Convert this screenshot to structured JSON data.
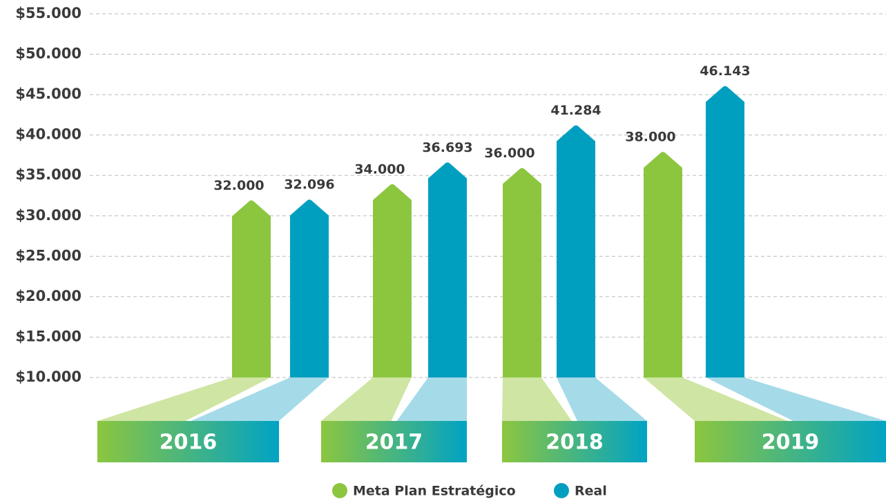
{
  "chart_data": {
    "type": "bar",
    "categories": [
      "2016",
      "2017",
      "2018",
      "2019"
    ],
    "series": [
      {
        "name": "Meta Plan Estratégico",
        "color": "#8cc63f",
        "light_color": "#cfe5a3",
        "values": [
          32000,
          34000,
          36000,
          38000
        ],
        "value_labels": [
          "32.000",
          "34.000",
          "36.000",
          "38.000"
        ]
      },
      {
        "name": "Real",
        "color": "#009fc0",
        "light_color": "#a5dbe8",
        "values": [
          32096,
          36693,
          41284,
          46143
        ],
        "value_labels": [
          "32.096",
          "36.693",
          "41.284",
          "46.143"
        ]
      }
    ],
    "ylim": [
      10000,
      55000
    ],
    "yticks": [
      {
        "value": 10000,
        "label": "$10.000"
      },
      {
        "value": 15000,
        "label": "$15.000"
      },
      {
        "value": 20000,
        "label": "$20.000"
      },
      {
        "value": 25000,
        "label": "$25.000"
      },
      {
        "value": 30000,
        "label": "$30.000"
      },
      {
        "value": 35000,
        "label": "$35.000"
      },
      {
        "value": 40000,
        "label": "$40.000"
      },
      {
        "value": 45000,
        "label": "$45.000"
      },
      {
        "value": 50000,
        "label": "$50.000"
      },
      {
        "value": 55000,
        "label": "$55.000"
      }
    ],
    "grid": true,
    "legend": "bottom"
  }
}
